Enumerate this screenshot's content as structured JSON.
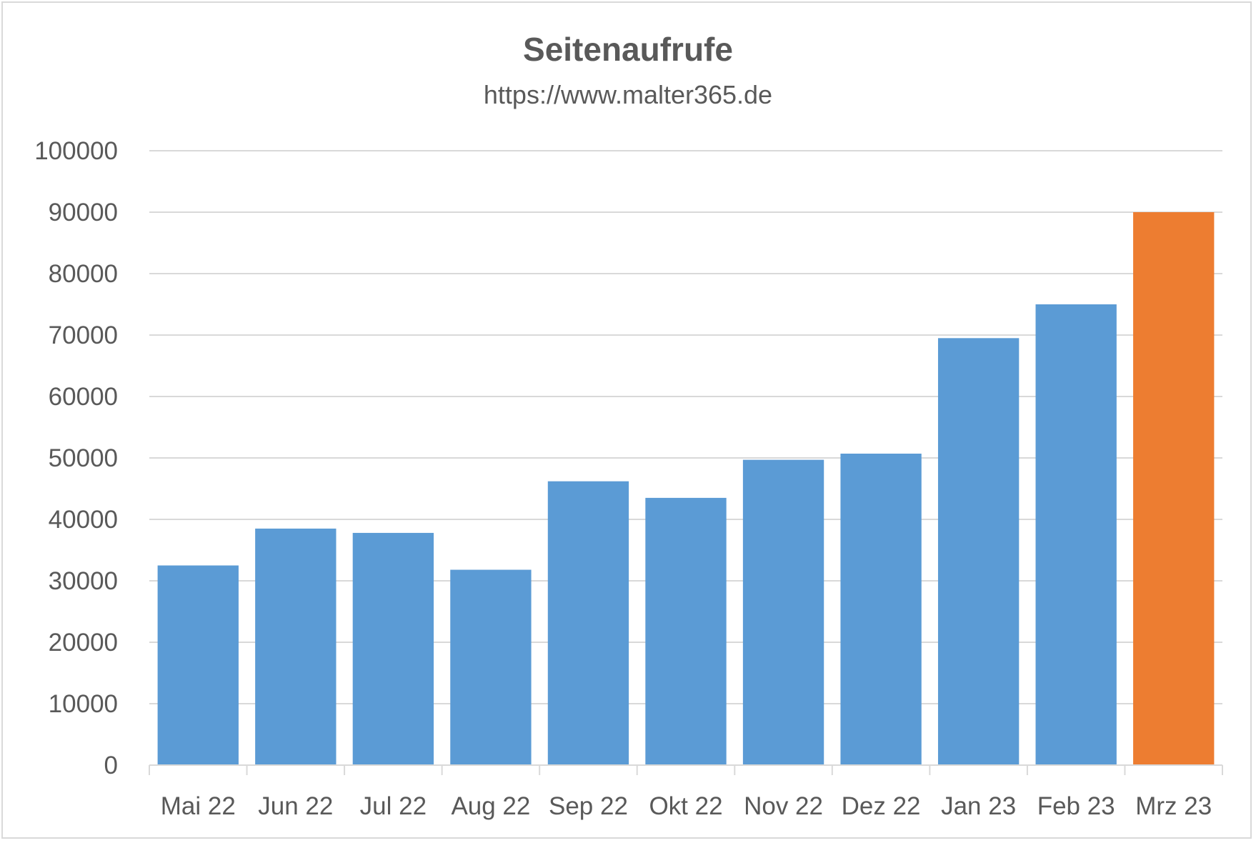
{
  "chart_data": {
    "type": "bar",
    "title": "Seitenaufrufe",
    "subtitle": "https://www.malter365.de",
    "xlabel": "",
    "ylabel": "",
    "categories": [
      "Mai 22",
      "Jun 22",
      "Jul 22",
      "Aug 22",
      "Sep 22",
      "Okt 22",
      "Nov 22",
      "Dez 22",
      "Jan 23",
      "Feb 23",
      "Mrz 23"
    ],
    "values": [
      32500,
      38500,
      37800,
      31800,
      46200,
      43500,
      49700,
      50700,
      69500,
      75000,
      90000
    ],
    "colors": [
      "#5b9bd5",
      "#5b9bd5",
      "#5b9bd5",
      "#5b9bd5",
      "#5b9bd5",
      "#5b9bd5",
      "#5b9bd5",
      "#5b9bd5",
      "#5b9bd5",
      "#5b9bd5",
      "#ed7d31"
    ],
    "ylim": [
      0,
      100000
    ],
    "yticks": [
      0,
      10000,
      20000,
      30000,
      40000,
      50000,
      60000,
      70000,
      80000,
      90000,
      100000
    ],
    "grid": true,
    "legend": "none"
  }
}
